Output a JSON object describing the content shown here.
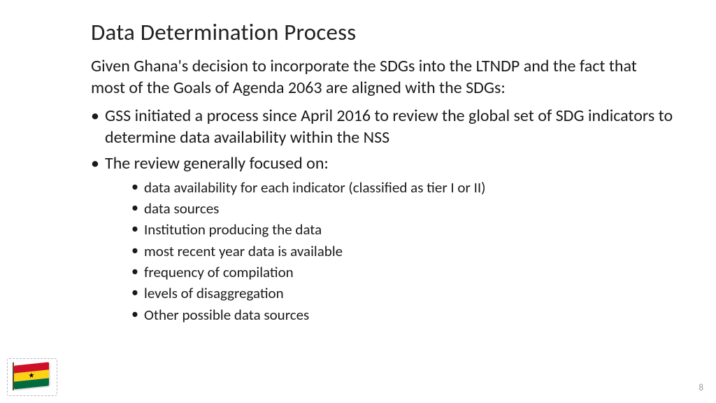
{
  "slide": {
    "title": "Data Determination Process",
    "intro": "Given Ghana's decision to incorporate the SDGs into the LTNDP and the fact that most of the Goals of Agenda 2063 are aligned with the SDGs:",
    "bullets": [
      {
        "text": "GSS initiated a process since April 2016 to review the global set of SDG indicators to determine data availability within the NSS"
      },
      {
        "text": "The review generally focused on:",
        "sub": [
          "data availability for each indicator (classified as tier I or II)",
          " data sources",
          "Institution producing the data",
          "most recent year data is available",
          " frequency of compilation",
          " levels of disaggregation",
          "Other possible data sources"
        ]
      }
    ],
    "page_number": "8"
  },
  "flag": {
    "name": "ghana-flag-icon",
    "stripes": [
      "#ce1126",
      "#fcd116",
      "#006b3f"
    ],
    "star_color": "#000000"
  },
  "style": {
    "background_color": "#ffffff",
    "title_fontsize": 33,
    "body_fontsize": 24,
    "sub_fontsize": 21,
    "text_color": "#1a1a1a",
    "pagenum_color": "#9a9a9a"
  }
}
